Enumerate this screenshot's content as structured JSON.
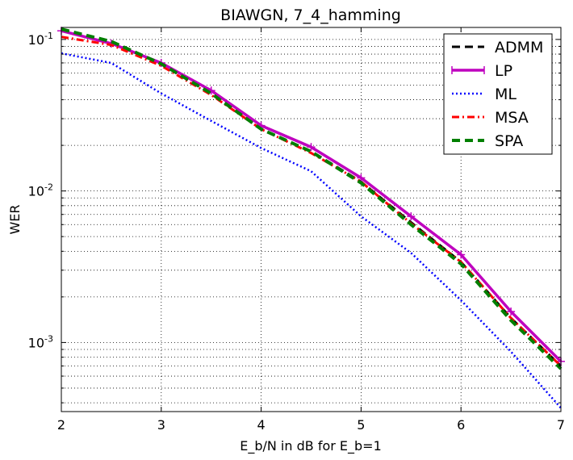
{
  "chart_data": {
    "type": "line",
    "title": "BIAWGN, 7_4_hamming",
    "xlabel": "E_b/N in dB for E_b=1",
    "ylabel": "WER",
    "xlim": [
      2,
      7
    ],
    "ylim": [
      0.00035,
      0.12
    ],
    "yscale": "log",
    "grid": true,
    "legend_position": "top-right",
    "x_ticks": [
      2,
      3,
      4,
      5,
      6,
      7
    ],
    "x_tick_labels": [
      "2",
      "3",
      "4",
      "5",
      "6",
      "7"
    ],
    "y_ticks": [
      {
        "value": 0.1,
        "mantissa": "10",
        "exponent": "-1"
      },
      {
        "value": 0.01,
        "mantissa": "10",
        "exponent": "-2"
      },
      {
        "value": 0.001,
        "mantissa": "10",
        "exponent": "-3"
      }
    ],
    "series": [
      {
        "name": "ADMM",
        "color": "#000000",
        "style": "dashed",
        "x": [
          2,
          2.5,
          3,
          3.5,
          4,
          4.5,
          5,
          5.5,
          6,
          6.5,
          7
        ],
        "y": [
          0.116,
          0.096,
          0.069,
          0.044,
          0.0255,
          0.0183,
          0.0115,
          0.0062,
          0.0034,
          0.00145,
          0.0007
        ]
      },
      {
        "name": "LP",
        "color": "#bf00bf",
        "style": "solid-thick",
        "x": [
          2,
          2.5,
          3,
          3.5,
          4,
          4.5,
          5,
          5.5,
          6,
          6.5,
          7
        ],
        "y": [
          0.114,
          0.094,
          0.07,
          0.046,
          0.027,
          0.0195,
          0.0122,
          0.0068,
          0.0038,
          0.0016,
          0.00075
        ]
      },
      {
        "name": "ML",
        "color": "#0000ff",
        "style": "dotted",
        "x": [
          2,
          2.5,
          3,
          3.5,
          4,
          4.5,
          5,
          5.5,
          6,
          6.5,
          7
        ],
        "y": [
          0.081,
          0.07,
          0.044,
          0.029,
          0.0192,
          0.0135,
          0.0068,
          0.0039,
          0.0019,
          0.00087,
          0.00037
        ]
      },
      {
        "name": "MSA",
        "color": "#ff0000",
        "style": "dashdot",
        "x": [
          2,
          2.5,
          3,
          3.5,
          4,
          4.5,
          5,
          5.5,
          6,
          6.5,
          7
        ],
        "y": [
          0.104,
          0.092,
          0.067,
          0.043,
          0.0256,
          0.0178,
          0.0115,
          0.0061,
          0.0034,
          0.00145,
          0.0007
        ]
      },
      {
        "name": "SPA",
        "color": "#007f00",
        "style": "dashed-thick",
        "x": [
          2,
          2.5,
          3,
          3.5,
          4,
          4.5,
          5,
          5.5,
          6,
          6.5,
          7
        ],
        "y": [
          0.117,
          0.097,
          0.069,
          0.044,
          0.0256,
          0.0182,
          0.0113,
          0.006,
          0.0033,
          0.0014,
          0.00067
        ]
      }
    ]
  }
}
